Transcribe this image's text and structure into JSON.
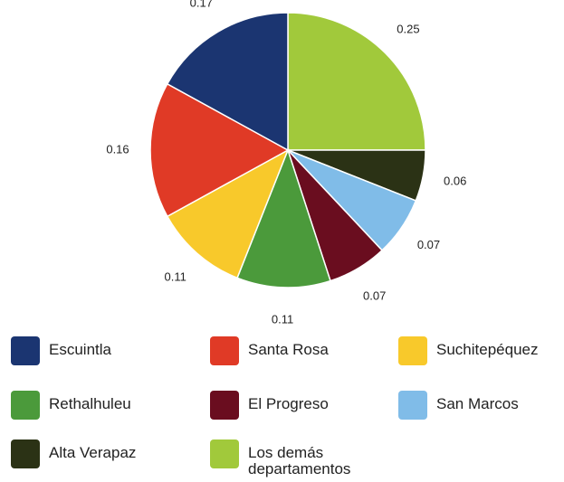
{
  "chart_data": {
    "type": "pie",
    "categories": [
      "Escuintla",
      "Santa Rosa",
      "Suchitepéquez",
      "Rethalhuleu",
      "El Progreso",
      "San Marcos",
      "Alta Verapaz",
      "Los demás departamentos"
    ],
    "values": [
      0.17,
      0.16,
      0.11,
      0.11,
      0.07,
      0.07,
      0.06,
      0.25
    ],
    "colors": [
      "#1b3571",
      "#e03a26",
      "#f8c92b",
      "#4b9a3b",
      "#6a0d1f",
      "#80bce8",
      "#2b3215",
      "#a1c93b"
    ],
    "legend": "bottom"
  }
}
